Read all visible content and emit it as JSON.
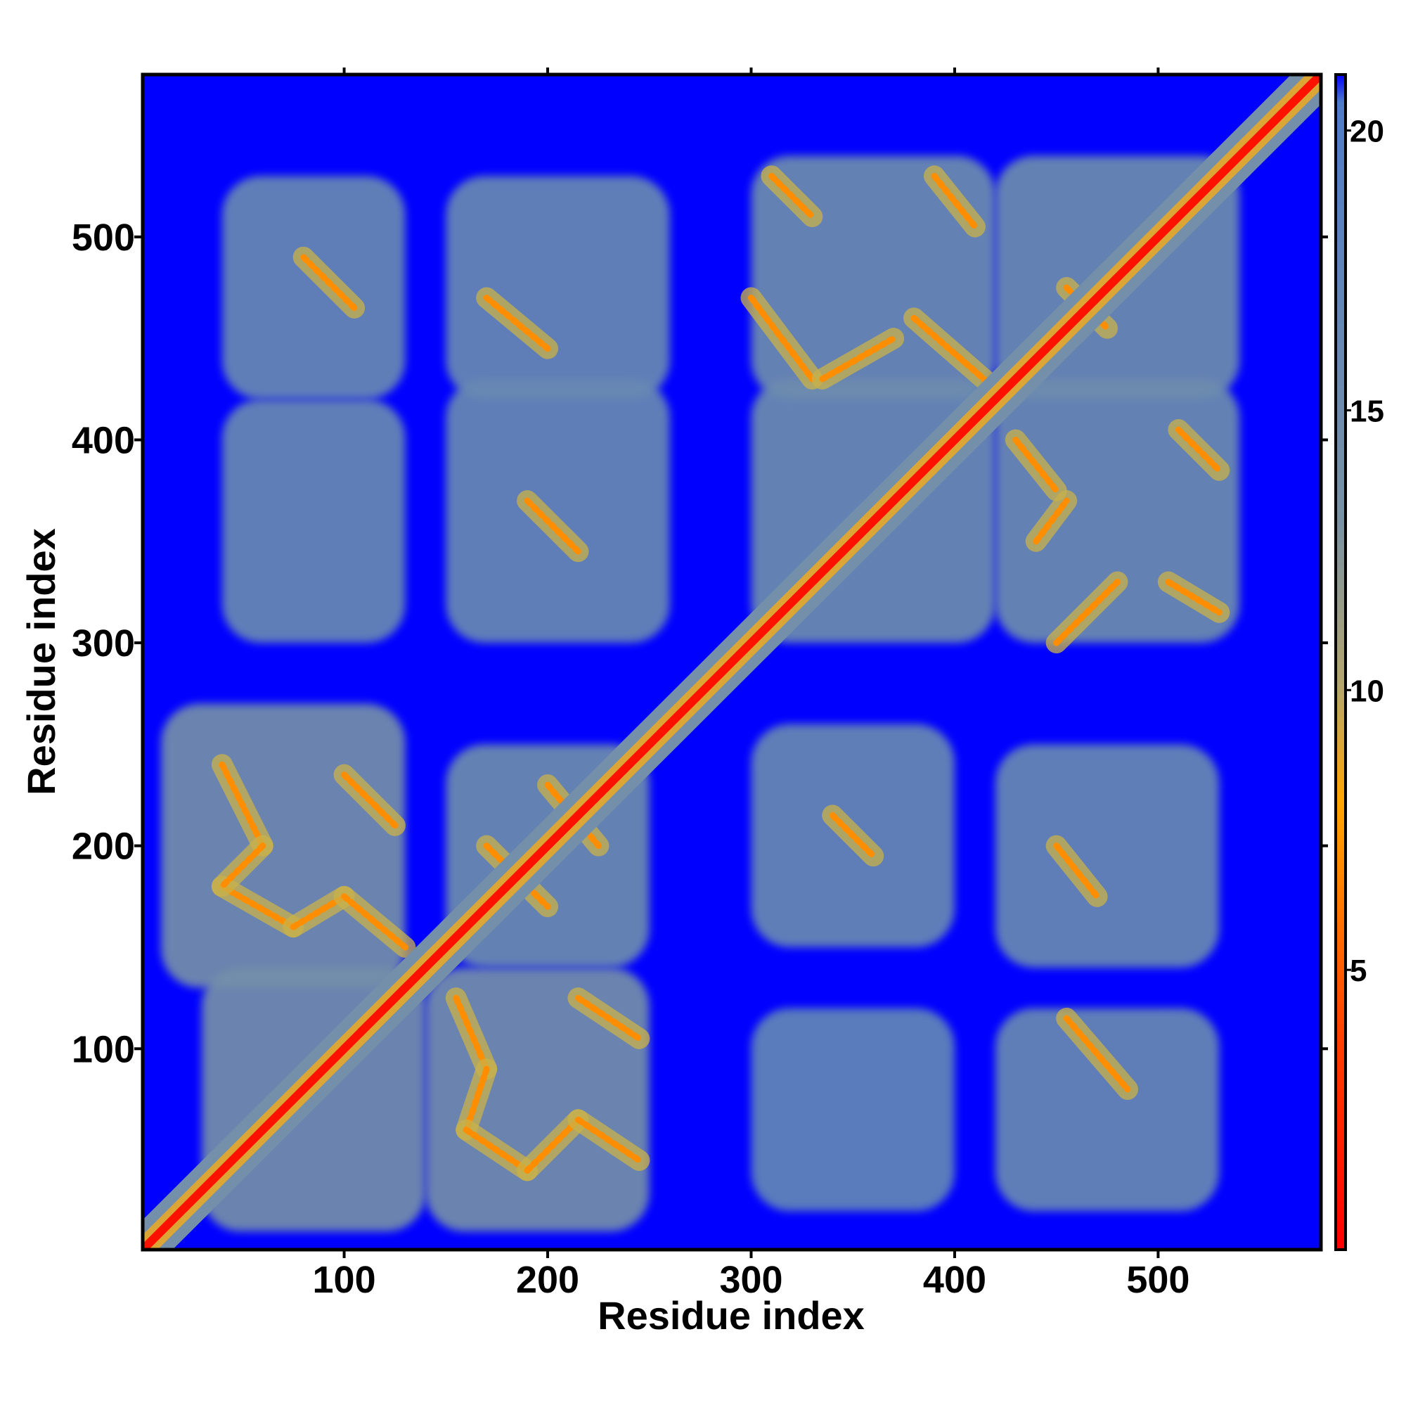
{
  "chart_data": {
    "type": "heatmap",
    "title": "",
    "xlabel": "Residue index",
    "ylabel": "Residue index",
    "xlim": [
      1,
      580
    ],
    "ylim": [
      1,
      580
    ],
    "x_ticks": [
      100,
      200,
      300,
      400,
      500
    ],
    "y_ticks": [
      100,
      200,
      300,
      400,
      500
    ],
    "x_tick_labels": [
      "100",
      "200",
      "300",
      "400",
      "500"
    ],
    "y_tick_labels": [
      "100",
      "200",
      "300",
      "400",
      "500"
    ],
    "colorbar": {
      "range": [
        0,
        21
      ],
      "ticks": [
        5,
        10,
        15,
        20
      ],
      "tick_labels": [
        "5",
        "10",
        "15",
        "20"
      ],
      "colors": [
        {
          "value": 0,
          "color": "#ff0000"
        },
        {
          "value": 4,
          "color": "#ff4400"
        },
        {
          "value": 8,
          "color": "#ffa500"
        },
        {
          "value": 10,
          "color": "#b7a66a"
        },
        {
          "value": 13,
          "color": "#7892a4"
        },
        {
          "value": 20.5,
          "color": "#4f7cc8"
        },
        {
          "value": 21,
          "color": "#0000ff"
        }
      ]
    },
    "background_value": 21,
    "grid": false,
    "legend": "right",
    "diagonal": {
      "from": 1,
      "to": 580,
      "value": 1
    },
    "contact_regions": [
      {
        "x": [
          10,
          130
        ],
        "y": [
          130,
          270
        ],
        "value": 14
      },
      {
        "x": [
          30,
          140
        ],
        "y": [
          10,
          140
        ],
        "value": 14
      },
      {
        "x": [
          140,
          250
        ],
        "y": [
          10,
          140
        ],
        "value": 14
      },
      {
        "x": [
          150,
          250
        ],
        "y": [
          140,
          250
        ],
        "value": 15
      },
      {
        "x": [
          40,
          130
        ],
        "y": [
          300,
          420
        ],
        "value": 16
      },
      {
        "x": [
          150,
          260
        ],
        "y": [
          300,
          430
        ],
        "value": 16
      },
      {
        "x": [
          40,
          130
        ],
        "y": [
          420,
          530
        ],
        "value": 16
      },
      {
        "x": [
          150,
          260
        ],
        "y": [
          420,
          530
        ],
        "value": 16
      },
      {
        "x": [
          300,
          400
        ],
        "y": [
          20,
          120
        ],
        "value": 17
      },
      {
        "x": [
          420,
          530
        ],
        "y": [
          20,
          120
        ],
        "value": 16
      },
      {
        "x": [
          300,
          400
        ],
        "y": [
          150,
          260
        ],
        "value": 16
      },
      {
        "x": [
          420,
          530
        ],
        "y": [
          140,
          250
        ],
        "value": 16
      },
      {
        "x": [
          300,
          420
        ],
        "y": [
          300,
          430
        ],
        "value": 15
      },
      {
        "x": [
          420,
          540
        ],
        "y": [
          300,
          430
        ],
        "value": 15
      },
      {
        "x": [
          300,
          420
        ],
        "y": [
          420,
          540
        ],
        "value": 15
      },
      {
        "x": [
          420,
          540
        ],
        "y": [
          420,
          540
        ],
        "value": 15
      }
    ],
    "contact_lines": [
      {
        "from": [
          40,
          240
        ],
        "to": [
          60,
          200
        ],
        "value": 7
      },
      {
        "from": [
          40,
          180
        ],
        "to": [
          75,
          160
        ],
        "value": 7
      },
      {
        "from": [
          75,
          160
        ],
        "to": [
          100,
          175
        ],
        "value": 7
      },
      {
        "from": [
          100,
          175
        ],
        "to": [
          130,
          150
        ],
        "value": 7
      },
      {
        "from": [
          100,
          235
        ],
        "to": [
          125,
          210
        ],
        "value": 7
      },
      {
        "from": [
          60,
          200
        ],
        "to": [
          40,
          180
        ],
        "value": 7
      },
      {
        "from": [
          155,
          125
        ],
        "to": [
          170,
          90
        ],
        "value": 7
      },
      {
        "from": [
          170,
          90
        ],
        "to": [
          160,
          60
        ],
        "value": 7
      },
      {
        "from": [
          160,
          60
        ],
        "to": [
          190,
          40
        ],
        "value": 7
      },
      {
        "from": [
          190,
          40
        ],
        "to": [
          215,
          65
        ],
        "value": 7
      },
      {
        "from": [
          215,
          65
        ],
        "to": [
          245,
          45
        ],
        "value": 7
      },
      {
        "from": [
          215,
          125
        ],
        "to": [
          245,
          105
        ],
        "value": 7
      },
      {
        "from": [
          170,
          200
        ],
        "to": [
          200,
          170
        ],
        "value": 7
      },
      {
        "from": [
          200,
          230
        ],
        "to": [
          225,
          200
        ],
        "value": 7
      },
      {
        "from": [
          80,
          490
        ],
        "to": [
          105,
          465
        ],
        "value": 7
      },
      {
        "from": [
          170,
          470
        ],
        "to": [
          200,
          445
        ],
        "value": 7
      },
      {
        "from": [
          190,
          370
        ],
        "to": [
          215,
          345
        ],
        "value": 7
      },
      {
        "from": [
          340,
          215
        ],
        "to": [
          360,
          195
        ],
        "value": 7
      },
      {
        "from": [
          450,
          200
        ],
        "to": [
          470,
          175
        ],
        "value": 7
      },
      {
        "from": [
          455,
          115
        ],
        "to": [
          485,
          80
        ],
        "value": 7
      },
      {
        "from": [
          310,
          530
        ],
        "to": [
          330,
          510
        ],
        "value": 7
      },
      {
        "from": [
          390,
          530
        ],
        "to": [
          410,
          505
        ],
        "value": 7
      },
      {
        "from": [
          300,
          470
        ],
        "to": [
          330,
          430
        ],
        "value": 7
      },
      {
        "from": [
          335,
          430
        ],
        "to": [
          370,
          450
        ],
        "value": 7
      },
      {
        "from": [
          380,
          460
        ],
        "to": [
          420,
          425
        ],
        "value": 7
      },
      {
        "from": [
          430,
          400
        ],
        "to": [
          450,
          375
        ],
        "value": 7
      },
      {
        "from": [
          440,
          350
        ],
        "to": [
          455,
          370
        ],
        "value": 7
      },
      {
        "from": [
          450,
          300
        ],
        "to": [
          480,
          330
        ],
        "value": 7
      },
      {
        "from": [
          510,
          405
        ],
        "to": [
          530,
          385
        ],
        "value": 7
      },
      {
        "from": [
          505,
          330
        ],
        "to": [
          530,
          315
        ],
        "value": 7
      },
      {
        "from": [
          455,
          475
        ],
        "to": [
          475,
          455
        ],
        "value": 7
      }
    ]
  }
}
